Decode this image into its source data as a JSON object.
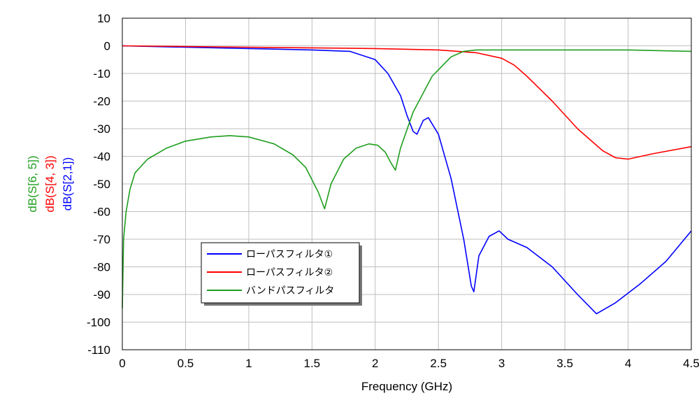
{
  "chart_data": {
    "type": "line",
    "xlabel": "Frequency (GHz)",
    "ylabels": [
      {
        "text": "dB(S[6, 5])",
        "color": "#1f9e1f"
      },
      {
        "text": "dB(S[4, 3])",
        "color": "#ff0000"
      },
      {
        "text": "dB(S[2,1])",
        "color": "#0000ff"
      }
    ],
    "xlim": [
      0,
      4.5
    ],
    "ylim": [
      -110,
      10
    ],
    "xticks": [
      0,
      0.5,
      1,
      1.5,
      2,
      2.5,
      3,
      3.5,
      4,
      4.5
    ],
    "xtick_labels": [
      "0",
      "0.5",
      "1",
      "1.5",
      "2",
      "2.5",
      "3",
      "3.5",
      "4",
      "4.5"
    ],
    "yticks": [
      10,
      0,
      -10,
      -20,
      -30,
      -40,
      -50,
      -60,
      -70,
      -80,
      -90,
      -100,
      -110
    ],
    "ytick_labels": [
      "10",
      "0",
      "-10",
      "-20",
      "-30",
      "-40",
      "-50",
      "-60",
      "-70",
      "-80",
      "-90",
      "-100",
      "-110"
    ],
    "grid": true,
    "legend_position": "lower-left",
    "series": [
      {
        "name": "ローパスフィルタ①",
        "color": "#0000ff",
        "x": [
          0,
          0.5,
          1.0,
          1.5,
          1.8,
          2.0,
          2.1,
          2.2,
          2.25,
          2.3,
          2.33,
          2.38,
          2.42,
          2.5,
          2.6,
          2.7,
          2.76,
          2.78,
          2.82,
          2.9,
          2.98,
          3.05,
          3.2,
          3.4,
          3.6,
          3.75,
          3.9,
          4.1,
          4.3,
          4.5
        ],
        "y": [
          0,
          -0.5,
          -1,
          -1.5,
          -2,
          -5,
          -10,
          -18,
          -25,
          -31,
          -32,
          -27,
          -26,
          -32,
          -48,
          -70,
          -87,
          -89,
          -76,
          -69,
          -67,
          -70,
          -73,
          -80,
          -90,
          -97,
          -93,
          -86,
          -78,
          -67
        ]
      },
      {
        "name": "ローパスフィルタ②",
        "color": "#ff0000",
        "x": [
          0,
          1.0,
          2.0,
          2.5,
          2.8,
          3.0,
          3.1,
          3.2,
          3.4,
          3.6,
          3.8,
          3.9,
          4.0,
          4.2,
          4.5
        ],
        "y": [
          0,
          -0.5,
          -1,
          -1.5,
          -2.5,
          -4.5,
          -7,
          -11,
          -20,
          -30,
          -38,
          -40.5,
          -41,
          -39,
          -36.5
        ]
      },
      {
        "name": "バンドパスフィルタ",
        "color": "#1f9e1f",
        "x": [
          0,
          0.01,
          0.03,
          0.06,
          0.1,
          0.2,
          0.35,
          0.5,
          0.7,
          0.85,
          1.0,
          1.2,
          1.35,
          1.45,
          1.55,
          1.6,
          1.65,
          1.75,
          1.85,
          1.95,
          2.02,
          2.08,
          2.12,
          2.16,
          2.2,
          2.3,
          2.45,
          2.6,
          2.7,
          2.8,
          3.0,
          3.5,
          4.0,
          4.5
        ],
        "y": [
          -95,
          -70,
          -60,
          -52,
          -46,
          -41,
          -37,
          -34.5,
          -33,
          -32.5,
          -33,
          -35.5,
          -39.5,
          -44,
          -53,
          -59,
          -50,
          -41,
          -37,
          -35.5,
          -36,
          -38.5,
          -42,
          -45,
          -37,
          -24,
          -11,
          -4,
          -2,
          -1.5,
          -1.5,
          -1.5,
          -1.5,
          -2
        ]
      }
    ]
  }
}
